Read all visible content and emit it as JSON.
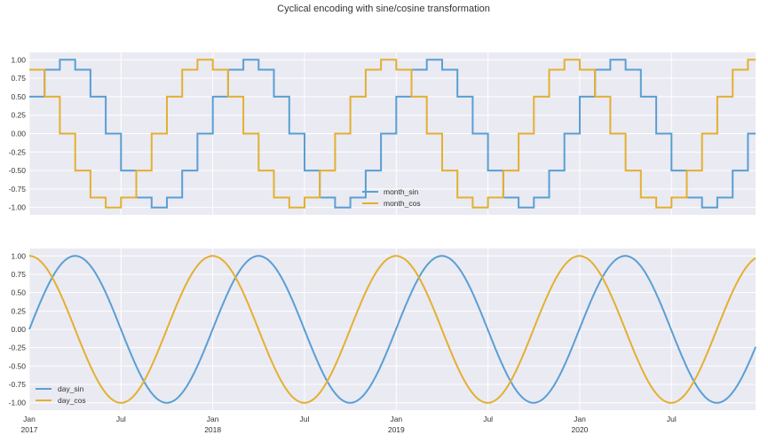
{
  "title": "Cyclical encoding with sine/cosine transformation",
  "colors": {
    "sin": "#5a9fd4",
    "cos": "#e3b031",
    "panel_bg": "#eaeaf2",
    "grid": "#ffffff"
  },
  "chart_data": [
    {
      "type": "line",
      "step": true,
      "ylim": [
        -1.1,
        1.1
      ],
      "yticks": [
        "1.00",
        "0.75",
        "0.50",
        "0.25",
        "0.00",
        "-0.25",
        "-0.50",
        "-0.75",
        "-1.00"
      ],
      "legend_position": "lower-center",
      "grid": true,
      "x_start": "2017-01",
      "x_end": "2020-12",
      "series": [
        {
          "name": "month_sin",
          "color_key": "sin",
          "values_per_year": [
            0.5,
            0.866,
            1.0,
            0.866,
            0.5,
            0.0,
            -0.5,
            -0.866,
            -1.0,
            -0.866,
            -0.5,
            0.0
          ]
        },
        {
          "name": "month_cos",
          "color_key": "cos",
          "values_per_year": [
            0.866,
            0.5,
            0.0,
            -0.5,
            -0.866,
            -1.0,
            -0.866,
            -0.5,
            0.0,
            0.5,
            0.866,
            1.0
          ]
        }
      ]
    },
    {
      "type": "line",
      "ylim": [
        -1.1,
        1.1
      ],
      "yticks": [
        "1.00",
        "0.75",
        "0.50",
        "0.25",
        "0.00",
        "-0.25",
        "-0.50",
        "-0.75",
        "-1.00"
      ],
      "legend_position": "lower-left",
      "grid": true,
      "x_start": "2017-01-01",
      "x_end": "2020-12-31",
      "xticks": [
        {
          "label": "Jan",
          "sublabel": "2017"
        },
        {
          "label": "Jul",
          "sublabel": ""
        },
        {
          "label": "Jan",
          "sublabel": "2018"
        },
        {
          "label": "Jul",
          "sublabel": ""
        },
        {
          "label": "Jan",
          "sublabel": "2019"
        },
        {
          "label": "Jul",
          "sublabel": ""
        },
        {
          "label": "Jan",
          "sublabel": "2020"
        },
        {
          "label": "Jul",
          "sublabel": ""
        }
      ],
      "series": [
        {
          "name": "day_sin",
          "color_key": "sin",
          "function": "sin(2*pi*day_of_year/365)"
        },
        {
          "name": "day_cos",
          "color_key": "cos",
          "function": "cos(2*pi*day_of_year/365)"
        }
      ]
    }
  ]
}
